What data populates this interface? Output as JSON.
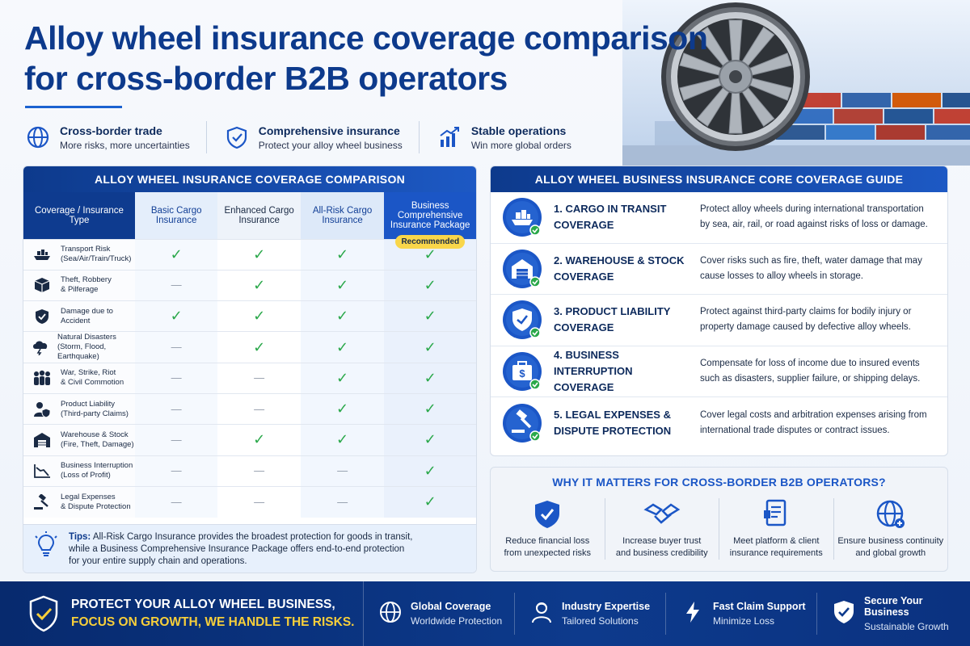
{
  "title": "Alloy wheel insurance coverage comparison for cross-border B2B operators",
  "features": [
    {
      "title": "Cross-border trade",
      "sub": "More risks, more uncertainties",
      "icon": "globe-icon"
    },
    {
      "title": "Comprehensive insurance",
      "sub": "Protect your alloy wheel business",
      "icon": "shield-check-icon"
    },
    {
      "title": "Stable operations",
      "sub": "Win more global orders",
      "icon": "growth-chart-icon"
    }
  ],
  "comparison": {
    "header": "ALLOY WHEEL INSURANCE COVERAGE COMPARISON",
    "columns": {
      "type": "Coverage / Insurance Type",
      "basic": "Basic Cargo Insurance",
      "enhanced": "Enhanced Cargo Insurance",
      "all_risk": "All-Risk Cargo Insurance",
      "business": "Business Comprehensive Insurance Package"
    },
    "recommended": "Recommended",
    "rows": [
      {
        "l1": "Transport Risk",
        "l2": "(Sea/Air/Train/Truck)",
        "icon": "ship-icon",
        "cells": [
          "check",
          "check",
          "check",
          "check"
        ]
      },
      {
        "l1": "Theft, Robbery",
        "l2": "& Pilferage",
        "icon": "box-icon",
        "cells": [
          "dash",
          "check",
          "check",
          "check"
        ]
      },
      {
        "l1": "Damage due to",
        "l2": "Accident",
        "icon": "shield-icon",
        "cells": [
          "check",
          "check",
          "check",
          "check"
        ]
      },
      {
        "l1": "Natural Disasters",
        "l2": "(Storm, Flood, Earthquake)",
        "icon": "storm-cloud-icon",
        "cells": [
          "dash",
          "check",
          "check",
          "check"
        ]
      },
      {
        "l1": "War, Strike, Riot",
        "l2": "& Civil Commotion",
        "icon": "people-icon",
        "cells": [
          "dash",
          "dash",
          "check",
          "check"
        ]
      },
      {
        "l1": "Product Liability",
        "l2": "(Third-party Claims)",
        "icon": "person-shield-icon",
        "cells": [
          "dash",
          "dash",
          "check",
          "check"
        ]
      },
      {
        "l1": "Warehouse & Stock",
        "l2": "(Fire, Theft, Damage)",
        "icon": "warehouse-icon",
        "cells": [
          "dash",
          "check",
          "check",
          "check"
        ]
      },
      {
        "l1": "Business Interruption",
        "l2": "(Loss of Profit)",
        "icon": "decline-chart-icon",
        "cells": [
          "dash",
          "dash",
          "dash",
          "check"
        ]
      },
      {
        "l1": "Legal Expenses",
        "l2": "& Dispute Protection",
        "icon": "gavel-icon",
        "cells": [
          "dash",
          "dash",
          "dash",
          "check"
        ]
      }
    ],
    "tips_label": "Tips:",
    "tips_line1": "All-Risk Cargo Insurance provides the broadest protection for goods in transit,",
    "tips_line2": "while a Business Comprehensive Insurance Package offers end-to-end protection",
    "tips_line3": "for your entire supply chain and operations."
  },
  "guide": {
    "header": "ALLOY WHEEL BUSINESS INSURANCE CORE COVERAGE GUIDE",
    "items": [
      {
        "t1": "1. CARGO IN TRANSIT",
        "t2": "COVERAGE",
        "d1": "Protect alloy wheels during international transportation",
        "d2": "by sea, air, rail, or road against risks of loss or damage.",
        "icon": "cargo-ship-icon"
      },
      {
        "t1": "2. WAREHOUSE & STOCK",
        "t2": "COVERAGE",
        "d1": "Cover risks such as fire, theft, water damage that may",
        "d2": "cause losses to alloy wheels in storage.",
        "icon": "warehouse-icon"
      },
      {
        "t1": "3. PRODUCT LIABILITY",
        "t2": "COVERAGE",
        "d1": "Protect against third-party claims for bodily injury or",
        "d2": "property damage caused by defective alloy wheels.",
        "icon": "liability-shield-icon"
      },
      {
        "t1": "4. BUSINESS INTERRUPTION",
        "t2": "COVERAGE",
        "d1": "Compensate for loss of income due to insured events",
        "d2": "such as disasters, supplier failure, or shipping delays.",
        "icon": "money-briefcase-icon"
      },
      {
        "t1": "5. LEGAL EXPENSES &",
        "t2": "DISPUTE PROTECTION",
        "d1": "Cover legal costs and arbitration expenses arising from",
        "d2": "international trade disputes or contract issues.",
        "icon": "gavel-icon"
      }
    ]
  },
  "why": {
    "title": "WHY IT MATTERS FOR CROSS-BORDER B2B OPERATORS?",
    "items": [
      {
        "l1": "Reduce financial loss",
        "l2": "from unexpected risks",
        "icon": "shield-check-icon"
      },
      {
        "l1": "Increase buyer trust",
        "l2": "and business credibility",
        "icon": "handshake-icon"
      },
      {
        "l1": "Meet platform & client",
        "l2": "insurance requirements",
        "icon": "document-icon"
      },
      {
        "l1": "Ensure business continuity",
        "l2": "and global growth",
        "icon": "globe-plus-icon"
      }
    ]
  },
  "footer": {
    "line1": "PROTECT YOUR ALLOY WHEEL BUSINESS,",
    "line2": "FOCUS ON GROWTH, WE HANDLE THE RISKS.",
    "items": [
      {
        "a": "Global Coverage",
        "b": "Worldwide Protection",
        "icon": "globe-icon"
      },
      {
        "a": "Industry Expertise",
        "b": "Tailored Solutions",
        "icon": "expert-icon"
      },
      {
        "a": "Fast Claim Support",
        "b": "Minimize Loss",
        "icon": "lightning-icon"
      },
      {
        "a": "Secure Your Business",
        "b": "Sustainable Growth",
        "icon": "shield-check-icon"
      }
    ]
  },
  "colors": {
    "primary": "#0d3a8c",
    "accent": "#1b56c6",
    "check": "#2aa84a",
    "highlight": "#f7cf3a"
  }
}
